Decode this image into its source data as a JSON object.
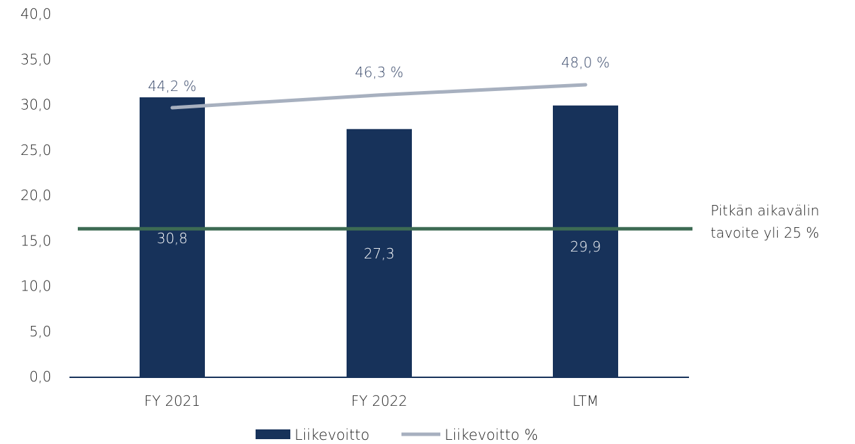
{
  "chart_data": {
    "type": "bar",
    "categories": [
      "FY 2021",
      "FY 2022",
      "LTM"
    ],
    "series": [
      {
        "name": "Liikevoitto",
        "kind": "bar",
        "values": [
          30.8,
          27.3,
          29.9
        ],
        "labels": [
          "30,8",
          "27,3",
          "29,9"
        ],
        "color": "#17325a"
      },
      {
        "name": "Liikevoitto %",
        "kind": "line",
        "values": [
          44.2,
          46.3,
          48.0
        ],
        "labels": [
          "44,2 %",
          "46,3 %",
          "48,0 %"
        ],
        "color": "#a7b0bf"
      }
    ],
    "ylim": [
      0,
      40
    ],
    "yticks": [
      "0,0",
      "5,0",
      "10,0",
      "15,0",
      "20,0",
      "25,0",
      "30,0",
      "35,0",
      "40,0"
    ],
    "target_line": {
      "label_line1": "Pitkän aikavälin",
      "label_line2": "tavoite yli 25 %",
      "color": "#3d6b53"
    },
    "legend_position": "bottom",
    "grid": false
  }
}
